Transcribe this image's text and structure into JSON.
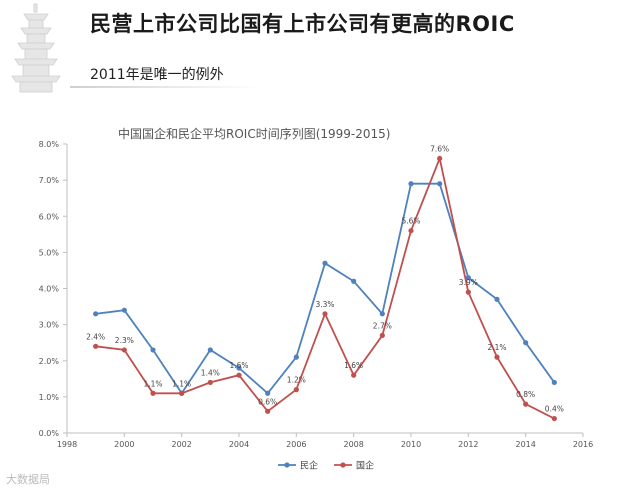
{
  "slide": {
    "title": "民营上市公司比国有上市公司有更高的ROIC",
    "subtitle": "2011年是唯一的例外",
    "watermark": "大数据局"
  },
  "chart_data": {
    "type": "line",
    "title": "中国国企和民企平均ROIC时间序列图(1999-2015)",
    "xlabel": "",
    "ylabel": "",
    "xlim": [
      1998,
      2016
    ],
    "ylim": [
      0.0,
      8.0
    ],
    "x_ticks": [
      1998,
      2000,
      2002,
      2004,
      2006,
      2008,
      2010,
      2012,
      2014,
      2016
    ],
    "y_ticks": [
      "0.0%",
      "1.0%",
      "2.0%",
      "3.0%",
      "4.0%",
      "5.0%",
      "6.0%",
      "7.0%",
      "8.0%"
    ],
    "legend_position": "bottom",
    "grid": false,
    "x": [
      1999,
      2000,
      2001,
      2002,
      2003,
      2004,
      2005,
      2006,
      2007,
      2008,
      2009,
      2010,
      2011,
      2012,
      2013,
      2014,
      2015
    ],
    "series": [
      {
        "name": "民企",
        "color": "#4f81bd",
        "values": [
          3.3,
          3.4,
          2.3,
          1.1,
          2.3,
          1.8,
          1.1,
          2.1,
          4.7,
          4.2,
          3.3,
          6.9,
          6.9,
          4.3,
          3.7,
          2.5,
          1.4
        ],
        "labels": []
      },
      {
        "name": "国企",
        "color": "#c0504d",
        "values": [
          2.4,
          2.3,
          1.1,
          1.1,
          1.4,
          1.6,
          0.6,
          1.2,
          3.3,
          1.6,
          2.7,
          5.6,
          7.6,
          3.9,
          2.1,
          0.8,
          0.4
        ],
        "labels": [
          "2.4%",
          "2.3%",
          "1.1%",
          "1.1%",
          "1.4%",
          "1.6%",
          "0.6%",
          "1.2%",
          "3.3%",
          "1.6%",
          "2.7%",
          "5.6%",
          "7.6%",
          "3.9%",
          "2.1%",
          "0.8%",
          "0.4%"
        ]
      }
    ]
  }
}
